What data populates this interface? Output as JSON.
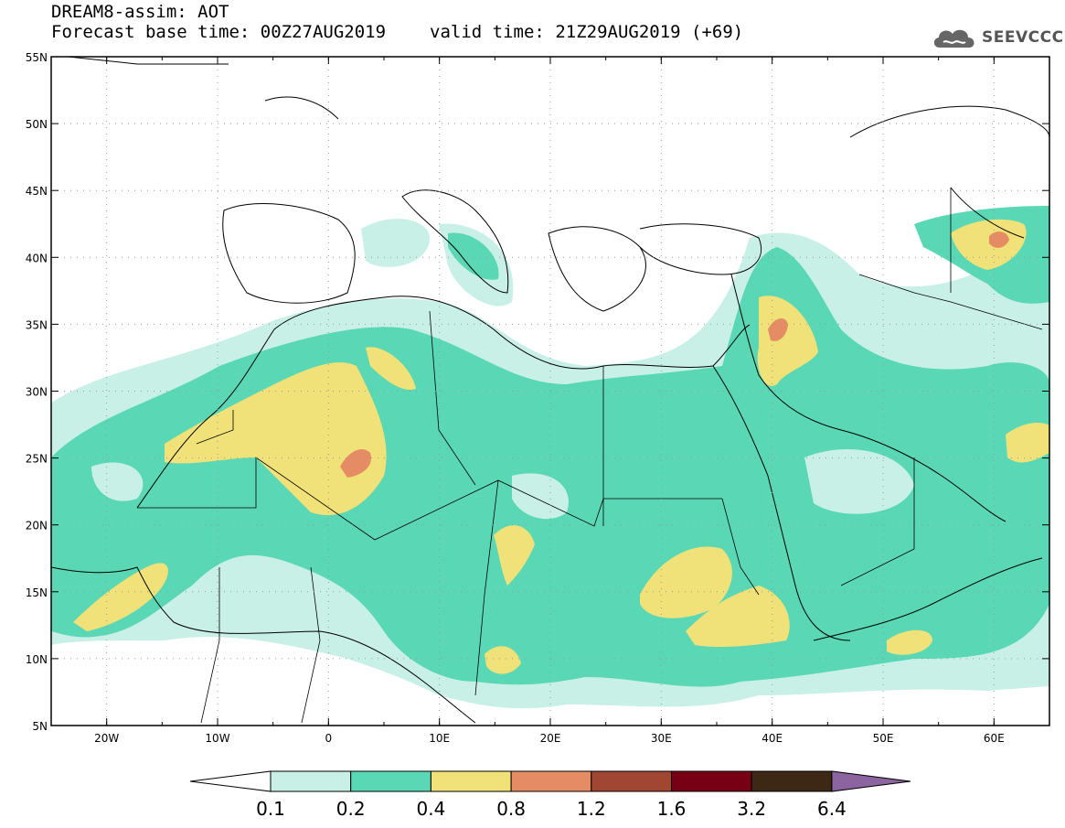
{
  "title": {
    "line1": "DREAM8-assim: AOT",
    "base_time": "Forecast base time: 00Z27AUG2019",
    "valid_time": "valid time: 21Z29AUG2019 (+69)"
  },
  "logo": {
    "icon": "cloud-logo-icon",
    "text": "SEEVCCC"
  },
  "axes": {
    "lat_labels": [
      "55N",
      "50N",
      "45N",
      "40N",
      "35N",
      "30N",
      "25N",
      "20N",
      "15N",
      "10N",
      "5N"
    ],
    "lon_labels": [
      "20W",
      "10W",
      "0",
      "10E",
      "20E",
      "30E",
      "40E",
      "50E",
      "60E"
    ],
    "lat_range": [
      5,
      55
    ],
    "lon_range": [
      -25,
      65
    ]
  },
  "colorbar": {
    "labels": [
      "0.1",
      "0.2",
      "0.4",
      "0.8",
      "1.2",
      "1.6",
      "3.2",
      "6.4"
    ],
    "colors": [
      "#ffffff",
      "#c8f0e6",
      "#5ad7b4",
      "#f0e178",
      "#e68c64",
      "#a04632",
      "#780014",
      "#3c2814",
      "#8c64a0"
    ]
  }
}
